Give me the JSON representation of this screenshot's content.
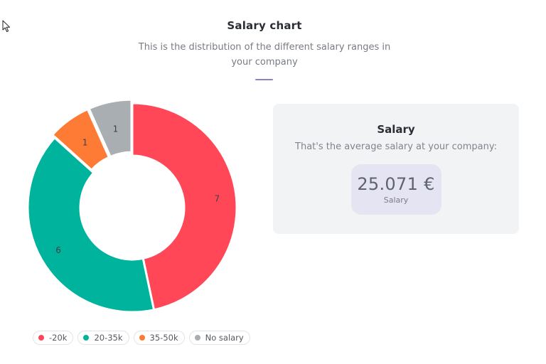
{
  "header": {
    "title": "Salary chart",
    "subtitle": "This is the distribution of the different salary ranges in your company"
  },
  "chart_data": {
    "type": "pie",
    "title": "",
    "categories": [
      "-20k",
      "20-35k",
      "35-50k",
      "No salary"
    ],
    "values": [
      7,
      6,
      1,
      1
    ],
    "colors": [
      "#ff4757",
      "#00b39c",
      "#fd7b35",
      "#a8aeb2"
    ],
    "legend": "bottom",
    "donut": true
  },
  "card": {
    "title": "Salary",
    "subtitle": "That's the average salary at your company:",
    "value": "25.071 €",
    "value_label": "Salary"
  }
}
